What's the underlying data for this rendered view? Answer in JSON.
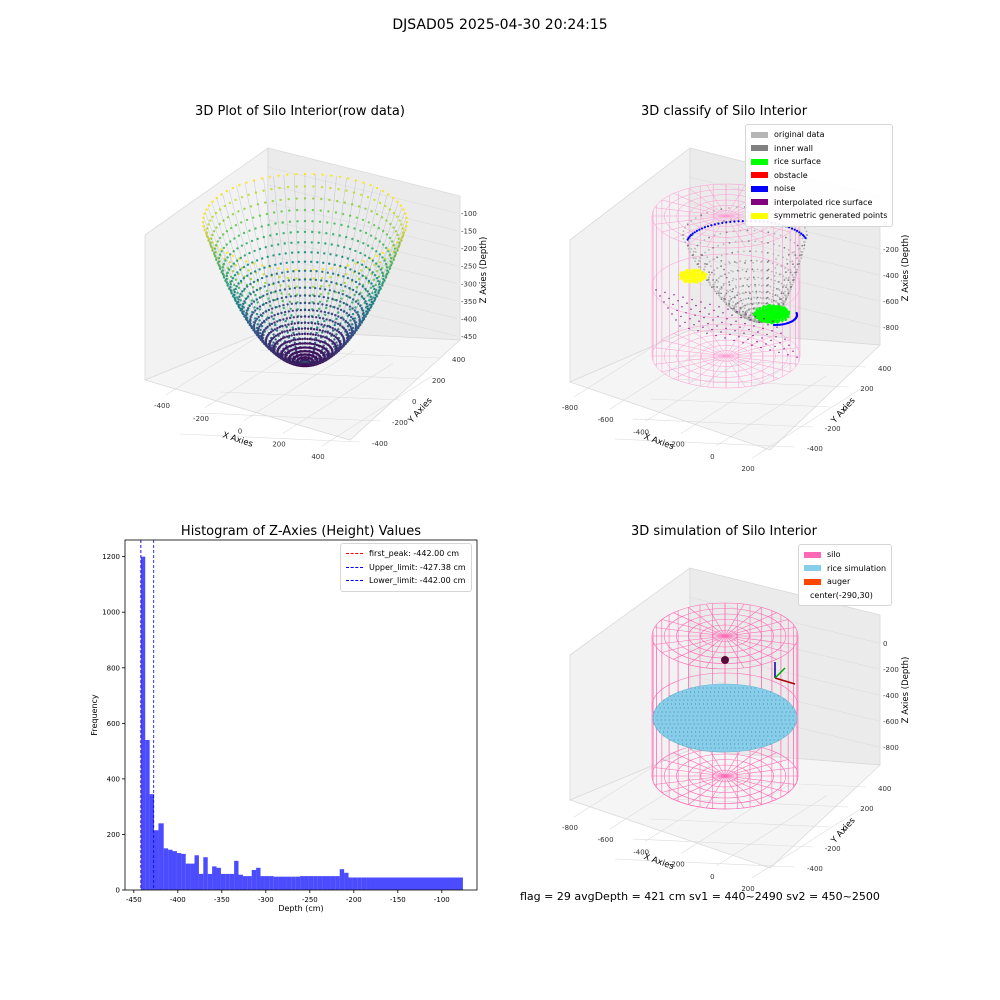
{
  "figure": {
    "suptitle": "DJSAD05 2025-04-30 20:24:15"
  },
  "footer": {
    "status_text": "flag = 29  avgDepth = 421 cm  sv1 = 440~2490 sv2 = 450~2500"
  },
  "chart_data": [
    {
      "id": "raw",
      "type": "scatter",
      "title": "3D Plot of Silo Interior(row data)",
      "xlabel": "X Axies",
      "ylabel": "Y Axies",
      "zlabel": "Z Axies (Depth)",
      "x_ticks": [
        -400,
        -200,
        0,
        200,
        400
      ],
      "y_ticks": [
        -400,
        -200,
        0,
        200,
        400
      ],
      "z_ticks": [
        -100,
        -150,
        -200,
        -250,
        -300,
        -350,
        -400,
        -450
      ],
      "xlim": [
        -450,
        450
      ],
      "ylim": [
        -450,
        450
      ],
      "zlim": [
        -460,
        -80
      ],
      "colormap": "viridis",
      "surface": {
        "shape": "paraboloid bowl",
        "center": [
          0,
          0
        ],
        "radius": 450,
        "z_bottom": -450,
        "z_rim": -100
      }
    },
    {
      "id": "classify",
      "type": "scatter",
      "title": "3D classify of Silo Interior",
      "xlabel": "X Axies",
      "ylabel": "Y Axies",
      "zlabel": "Z Axies (Depth)",
      "x_ticks": [
        -800,
        -600,
        -400,
        -200,
        0,
        200
      ],
      "y_ticks": [
        -400,
        -200,
        0,
        200,
        400
      ],
      "z_ticks": [
        0,
        -200,
        -400,
        -600,
        -800
      ],
      "legend_position": "upper right",
      "legend": [
        {
          "label": "original data",
          "color": "#b5b5b5"
        },
        {
          "label": "inner wall",
          "color": "#808080"
        },
        {
          "label": "rice surface",
          "color": "#00ff00"
        },
        {
          "label": "obstacle",
          "color": "#ff0000"
        },
        {
          "label": "noise",
          "color": "#0000ff"
        },
        {
          "label": "interpolated rice surface",
          "color": "#800080"
        },
        {
          "label": "symmetric generated points",
          "color": "#ffff00"
        }
      ]
    },
    {
      "id": "hist",
      "type": "bar",
      "title": "Histogram of Z-Axies (Height) Values",
      "xlabel": "Depth (cm)",
      "ylabel": "Frequency",
      "xlim": [
        -460,
        -60
      ],
      "ylim": [
        0,
        1260
      ],
      "x_ticks": [
        -450,
        -400,
        -350,
        -300,
        -250,
        -200,
        -150,
        -100
      ],
      "y_ticks": [
        0,
        200,
        400,
        600,
        800,
        1000,
        1200
      ],
      "bar_color": "#0000ff",
      "bin_edges": [
        -442,
        -437,
        -432,
        -427,
        -422,
        -416,
        -411,
        -406,
        -401,
        -396,
        -391,
        -386,
        -381,
        -376,
        -371,
        -366,
        -361,
        -356,
        -351,
        -346,
        -341,
        -336,
        -331,
        -326,
        -321,
        -316,
        -311,
        -306,
        -301,
        -296,
        -291,
        -286,
        -281,
        -276,
        -271,
        -266,
        -261,
        -256,
        -251,
        -246,
        -241,
        -236,
        -231,
        -226,
        -221,
        -216,
        -211,
        -206,
        -201,
        -196,
        -191,
        -186,
        -181,
        -76
      ],
      "counts": [
        1200,
        540,
        345,
        215,
        240,
        150,
        145,
        140,
        133,
        130,
        95,
        95,
        125,
        58,
        118,
        58,
        85,
        80,
        58,
        58,
        58,
        105,
        55,
        50,
        50,
        72,
        80,
        50,
        50,
        50,
        48,
        48,
        48,
        48,
        48,
        48,
        50,
        50,
        50,
        50,
        50,
        50,
        50,
        50,
        50,
        75,
        62,
        45,
        45,
        45,
        45,
        45,
        45
      ],
      "legend_position": "upper right",
      "reference_lines": [
        {
          "label": "first_peak: -442.00 cm",
          "value": -442.0,
          "color": "#ff0000"
        },
        {
          "label": "Upper_limit: -427.38 cm",
          "value": -427.38,
          "color": "#0000ff"
        },
        {
          "label": "Lower_limit: -442.00 cm",
          "value": -442.0,
          "color": "#0000ff"
        }
      ]
    },
    {
      "id": "sim",
      "type": "scatter",
      "title": "3D simulation of Silo Interior",
      "xlabel": "X Axies",
      "ylabel": "Y Axies",
      "zlabel": "Z Axies (Depth)",
      "x_ticks": [
        -800,
        -600,
        -400,
        -200,
        0,
        200
      ],
      "y_ticks": [
        -400,
        -200,
        0,
        200,
        400
      ],
      "z_ticks": [
        0,
        -200,
        -400,
        -600,
        -800
      ],
      "legend_position": "upper right",
      "legend": [
        {
          "label": "silo",
          "color": "#ff69b4"
        },
        {
          "label": "rice simulation",
          "color": "#87ceeb"
        },
        {
          "label": "auger",
          "color": "#ff4500"
        },
        {
          "label": "center(-290,30)",
          "color": ""
        }
      ]
    }
  ]
}
